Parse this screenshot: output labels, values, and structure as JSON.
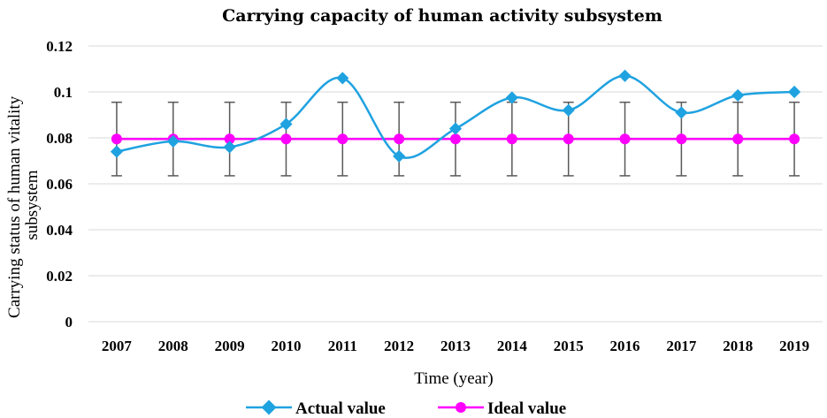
{
  "chart_data": {
    "type": "line",
    "title": "Carrying capacity of human activity subsystem",
    "xlabel": "Time (year)",
    "ylabel": "Carrying status of human vitality subsystem",
    "ylim": [
      0,
      0.12
    ],
    "y_ticks": [
      "0",
      "0.02",
      "0.04",
      "0.06",
      "0.08",
      "0.1",
      "0.12"
    ],
    "y_tick_values": [
      0,
      0.02,
      0.04,
      0.06,
      0.08,
      0.1,
      0.12
    ],
    "grid": true,
    "legend_position": "bottom",
    "categories": [
      "2007",
      "2008",
      "2009",
      "2010",
      "2011",
      "2012",
      "2013",
      "2014",
      "2015",
      "2016",
      "2017",
      "2018",
      "2019"
    ],
    "series": [
      {
        "name": "Actual value",
        "color": "#1fa2e0",
        "marker": "diamond",
        "smooth": true,
        "values": [
          0.074,
          0.0785,
          0.076,
          0.086,
          0.106,
          0.072,
          0.084,
          0.0975,
          0.092,
          0.107,
          0.091,
          0.0985,
          0.1
        ]
      },
      {
        "name": "Ideal value",
        "color": "#ff00ff",
        "marker": "circle",
        "smooth": false,
        "values": [
          0.0795,
          0.0795,
          0.0795,
          0.0795,
          0.0795,
          0.0795,
          0.0795,
          0.0795,
          0.0795,
          0.0795,
          0.0795,
          0.0795,
          0.0795
        ],
        "error_bars": {
          "plus": 0.016,
          "minus": 0.016,
          "color": "#595959"
        }
      }
    ]
  }
}
